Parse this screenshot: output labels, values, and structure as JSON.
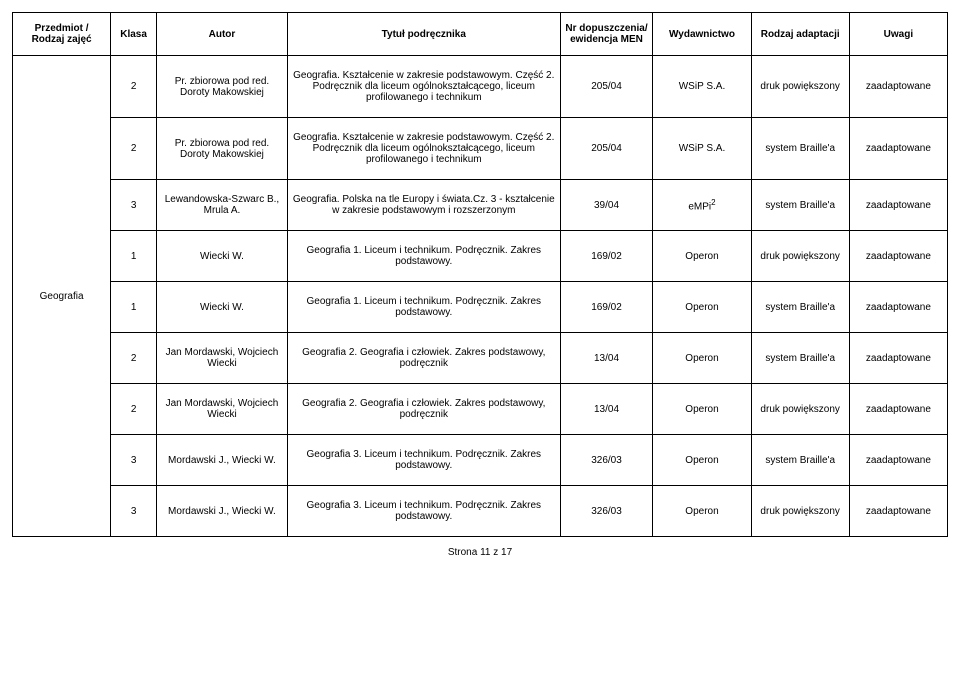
{
  "headers": {
    "przedmiot": "Przedmiot / Rodzaj zajęć",
    "klasa": "Klasa",
    "autor": "Autor",
    "tytul": "Tytuł podręcznika",
    "nr": "Nr dopuszczenia/ ewidencja MEN",
    "wyd": "Wydawnictwo",
    "rodzaj": "Rodzaj adaptacji",
    "uwagi": "Uwagi"
  },
  "subject": "Geografia",
  "rows": [
    {
      "klasa": "2",
      "autor": "Pr. zbiorowa pod red. Doroty Makowskiej",
      "tytul": "Geografia. Kształcenie w zakresie podstawowym. Część 2. Podręcznik dla liceum ogólnokształcącego, liceum profilowanego i technikum",
      "nr": "205/04",
      "wyd": "WSiP S.A.",
      "rodzaj": "druk powiększony",
      "uwagi": "zaadaptowane"
    },
    {
      "klasa": "2",
      "autor": "Pr. zbiorowa pod red. Doroty Makowskiej",
      "tytul": "Geografia. Kształcenie w zakresie podstawowym. Część 2. Podręcznik dla liceum ogólnokształcącego, liceum profilowanego i technikum",
      "nr": "205/04",
      "wyd": "WSiP S.A.",
      "rodzaj": "system Braille'a",
      "uwagi": "zaadaptowane"
    },
    {
      "klasa": "3",
      "autor": "Lewandowska-Szwarc B., Mrula A.",
      "tytul": "Geografia. Polska na tle Europy i świata.Cz. 3 - kształcenie w zakresie podstawowym i rozszerzonym",
      "nr": "39/04",
      "wyd": "eMPi",
      "wyd_sup": "2",
      "rodzaj": "system Braille'a",
      "uwagi": "zaadaptowane"
    },
    {
      "klasa": "1",
      "autor": "Wiecki W.",
      "tytul": "Geografia 1. Liceum i technikum. Podręcznik. Zakres podstawowy.",
      "nr": "169/02",
      "wyd": "Operon",
      "rodzaj": "druk powiększony",
      "uwagi": "zaadaptowane"
    },
    {
      "klasa": "1",
      "autor": "Wiecki W.",
      "tytul": "Geografia 1. Liceum i technikum. Podręcznik. Zakres podstawowy.",
      "nr": "169/02",
      "wyd": "Operon",
      "rodzaj": "system Braille'a",
      "uwagi": "zaadaptowane"
    },
    {
      "klasa": "2",
      "autor": "Jan Mordawski, Wojciech Wiecki",
      "tytul": "Geografia 2. Geografia i człowiek. Zakres podstawowy, podręcznik",
      "nr": "13/04",
      "wyd": "Operon",
      "rodzaj": "system Braille'a",
      "uwagi": "zaadaptowane"
    },
    {
      "klasa": "2",
      "autor": "Jan Mordawski, Wojciech Wiecki",
      "tytul": "Geografia 2. Geografia i człowiek. Zakres podstawowy, podręcznik",
      "nr": "13/04",
      "wyd": "Operon",
      "rodzaj": "druk powiększony",
      "uwagi": "zaadaptowane"
    },
    {
      "klasa": "3",
      "autor": "Mordawski J., Wiecki W.",
      "tytul": "Geografia 3. Liceum i technikum. Podręcznik. Zakres podstawowy.",
      "nr": "326/03",
      "wyd": "Operon",
      "rodzaj": "system Braille'a",
      "uwagi": "zaadaptowane"
    },
    {
      "klasa": "3",
      "autor": "Mordawski J., Wiecki W.",
      "tytul": "Geografia 3. Liceum i technikum. Podręcznik. Zakres podstawowy.",
      "nr": "326/03",
      "wyd": "Operon",
      "rodzaj": "druk powiększony",
      "uwagi": "zaadaptowane"
    }
  ],
  "footer": "Strona 11 z 17"
}
